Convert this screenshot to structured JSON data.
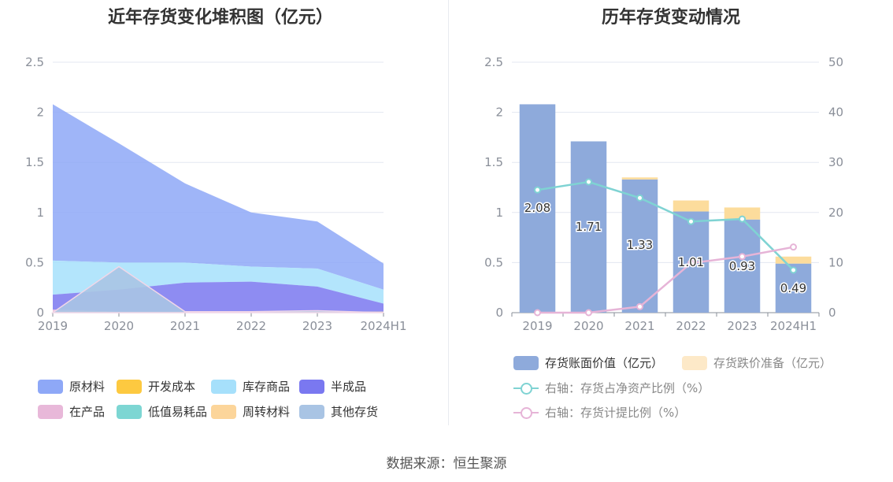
{
  "source_label": "数据来源：恒生聚源",
  "chart_data": [
    {
      "type": "area",
      "stacked": true,
      "title": "近年存货变化堆积图（亿元）",
      "categories": [
        "2019",
        "2020",
        "2021",
        "2022",
        "2023",
        "2024H1"
      ],
      "ylim": [
        0,
        2.5
      ],
      "yticks": [
        "0",
        "0.5",
        "1",
        "1.5",
        "2",
        "2.5"
      ],
      "grid": true,
      "legend_position": "bottom",
      "series": [
        {
          "name": "原材料",
          "color": "#8ea8f7",
          "values": [
            1.56,
            1.19,
            0.79,
            0.54,
            0.47,
            0.26
          ]
        },
        {
          "name": "开发成本",
          "color": "#fdc940",
          "values": [
            0,
            0,
            0,
            0,
            0,
            0
          ]
        },
        {
          "name": "库存商品",
          "color": "#a6e0fb",
          "values": [
            0.34,
            0.27,
            0.2,
            0.15,
            0.18,
            0.14
          ]
        },
        {
          "name": "半成品",
          "color": "#7a78f0",
          "values": [
            0.15,
            0.22,
            0.29,
            0.3,
            0.25,
            0.08
          ]
        },
        {
          "name": "在产品",
          "color": "#e8b8d9",
          "values": [
            0.02,
            0.0,
            0.0,
            0.0,
            0.0,
            0.0
          ]
        },
        {
          "name": "低值易耗品",
          "color": "#7dd6d3",
          "values": [
            0,
            0,
            0,
            0,
            0,
            0
          ]
        },
        {
          "name": "周转材料",
          "color": "#fcd59a",
          "values": [
            0.01,
            0.01,
            0.01,
            0.01,
            0.01,
            0.01
          ]
        },
        {
          "name": "其他存货",
          "color": "#a9c4e4",
          "values": [
            0.0,
            0.46,
            0.01,
            0.01,
            0.02,
            0.0
          ]
        }
      ]
    },
    {
      "type": "bar",
      "title": "历年存货变动情况",
      "categories": [
        "2019",
        "2020",
        "2021",
        "2022",
        "2023",
        "2024H1"
      ],
      "ylim": [
        0,
        2.5
      ],
      "yticks": [
        "0",
        "0.5",
        "1",
        "1.5",
        "2",
        "2.5"
      ],
      "y2lim": [
        0,
        50
      ],
      "y2ticks": [
        "0",
        "10",
        "20",
        "30",
        "40",
        "50"
      ],
      "grid": true,
      "legend_position": "bottom",
      "series": [
        {
          "name": "存货账面价值（亿元）",
          "color": "#8eaadb",
          "values": [
            2.08,
            1.71,
            1.33,
            1.01,
            0.93,
            0.49
          ],
          "labels": [
            "2.08",
            "1.71",
            "1.33",
            "1.01",
            "0.93",
            "0.49"
          ]
        },
        {
          "name": "存货跌价准备（亿元）",
          "color": "#fcdc9c",
          "values": [
            0.0,
            0.0,
            0.02,
            0.11,
            0.12,
            0.07
          ]
        },
        {
          "name": "右轴：存货占净资产比例（%）",
          "color": "#7fd3d3",
          "type": "line",
          "axis": "right",
          "values": [
            24.5,
            26.1,
            22.9,
            18.2,
            18.7,
            8.5
          ]
        },
        {
          "name": "右轴：存货计提比例（%）",
          "color": "#e6b4d7",
          "type": "line",
          "axis": "right",
          "values": [
            0.0,
            0.0,
            1.2,
            9.9,
            11.2,
            13.1
          ]
        }
      ]
    }
  ]
}
